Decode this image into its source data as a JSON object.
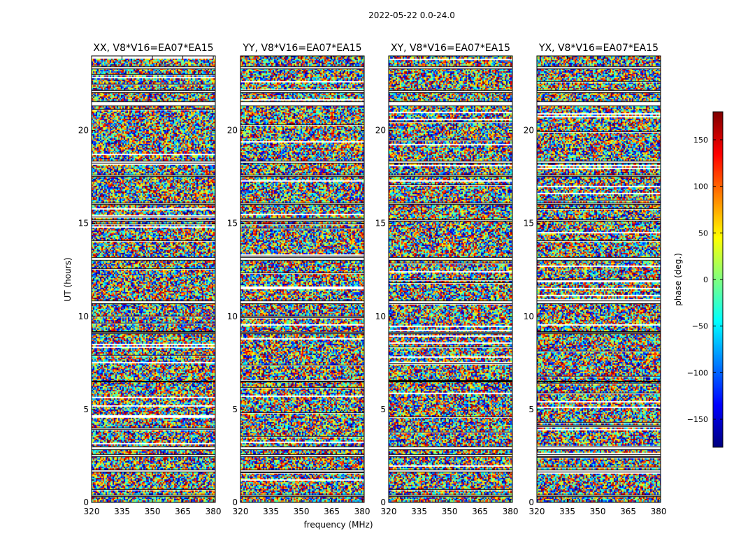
{
  "suptitle": "2022-05-22 0.0-24.0",
  "chart_data": {
    "type": "heatmap",
    "title": "2022-05-22 0.0-24.0",
    "xlabel": "frequency (MHz)",
    "ylabel": "UT (hours)",
    "xlim": [
      320,
      381
    ],
    "ylim": [
      0,
      24
    ],
    "x_ticks": [
      320,
      335,
      350,
      365,
      380
    ],
    "y_ticks": [
      0,
      5,
      10,
      15,
      20
    ],
    "colormap": "jet",
    "colorbar": {
      "label": "phase (deg.)",
      "range": [
        -180,
        180
      ],
      "ticks": [
        -150,
        -100,
        -50,
        0,
        50,
        100,
        150
      ]
    },
    "panels": [
      {
        "title": "XX, V8*V16=EA07*EA15",
        "value_range": [
          -180,
          180
        ]
      },
      {
        "title": "YY, V8*V16=EA07*EA15",
        "value_range": [
          -180,
          180
        ]
      },
      {
        "title": "XY, V8*V16=EA07*EA15",
        "value_range": [
          -180,
          180
        ]
      },
      {
        "title": "YX, V8*V16=EA07*EA15",
        "value_range": [
          -180,
          180
        ]
      }
    ],
    "flagged_ut_hours": [
      [
        23.3,
        23.45
      ],
      [
        22.0,
        22.15
      ],
      [
        21.3,
        21.55
      ],
      [
        18.2,
        18.35
      ],
      [
        17.5,
        17.6
      ],
      [
        16.0,
        16.1
      ],
      [
        15.1,
        15.2
      ],
      [
        13.0,
        13.2
      ],
      [
        10.65,
        10.85
      ],
      [
        9.05,
        9.15
      ],
      [
        6.45,
        6.55
      ],
      [
        2.8,
        3.0
      ],
      [
        2.45,
        2.6
      ],
      [
        1.6,
        1.75
      ],
      [
        0.3,
        0.4
      ]
    ]
  }
}
